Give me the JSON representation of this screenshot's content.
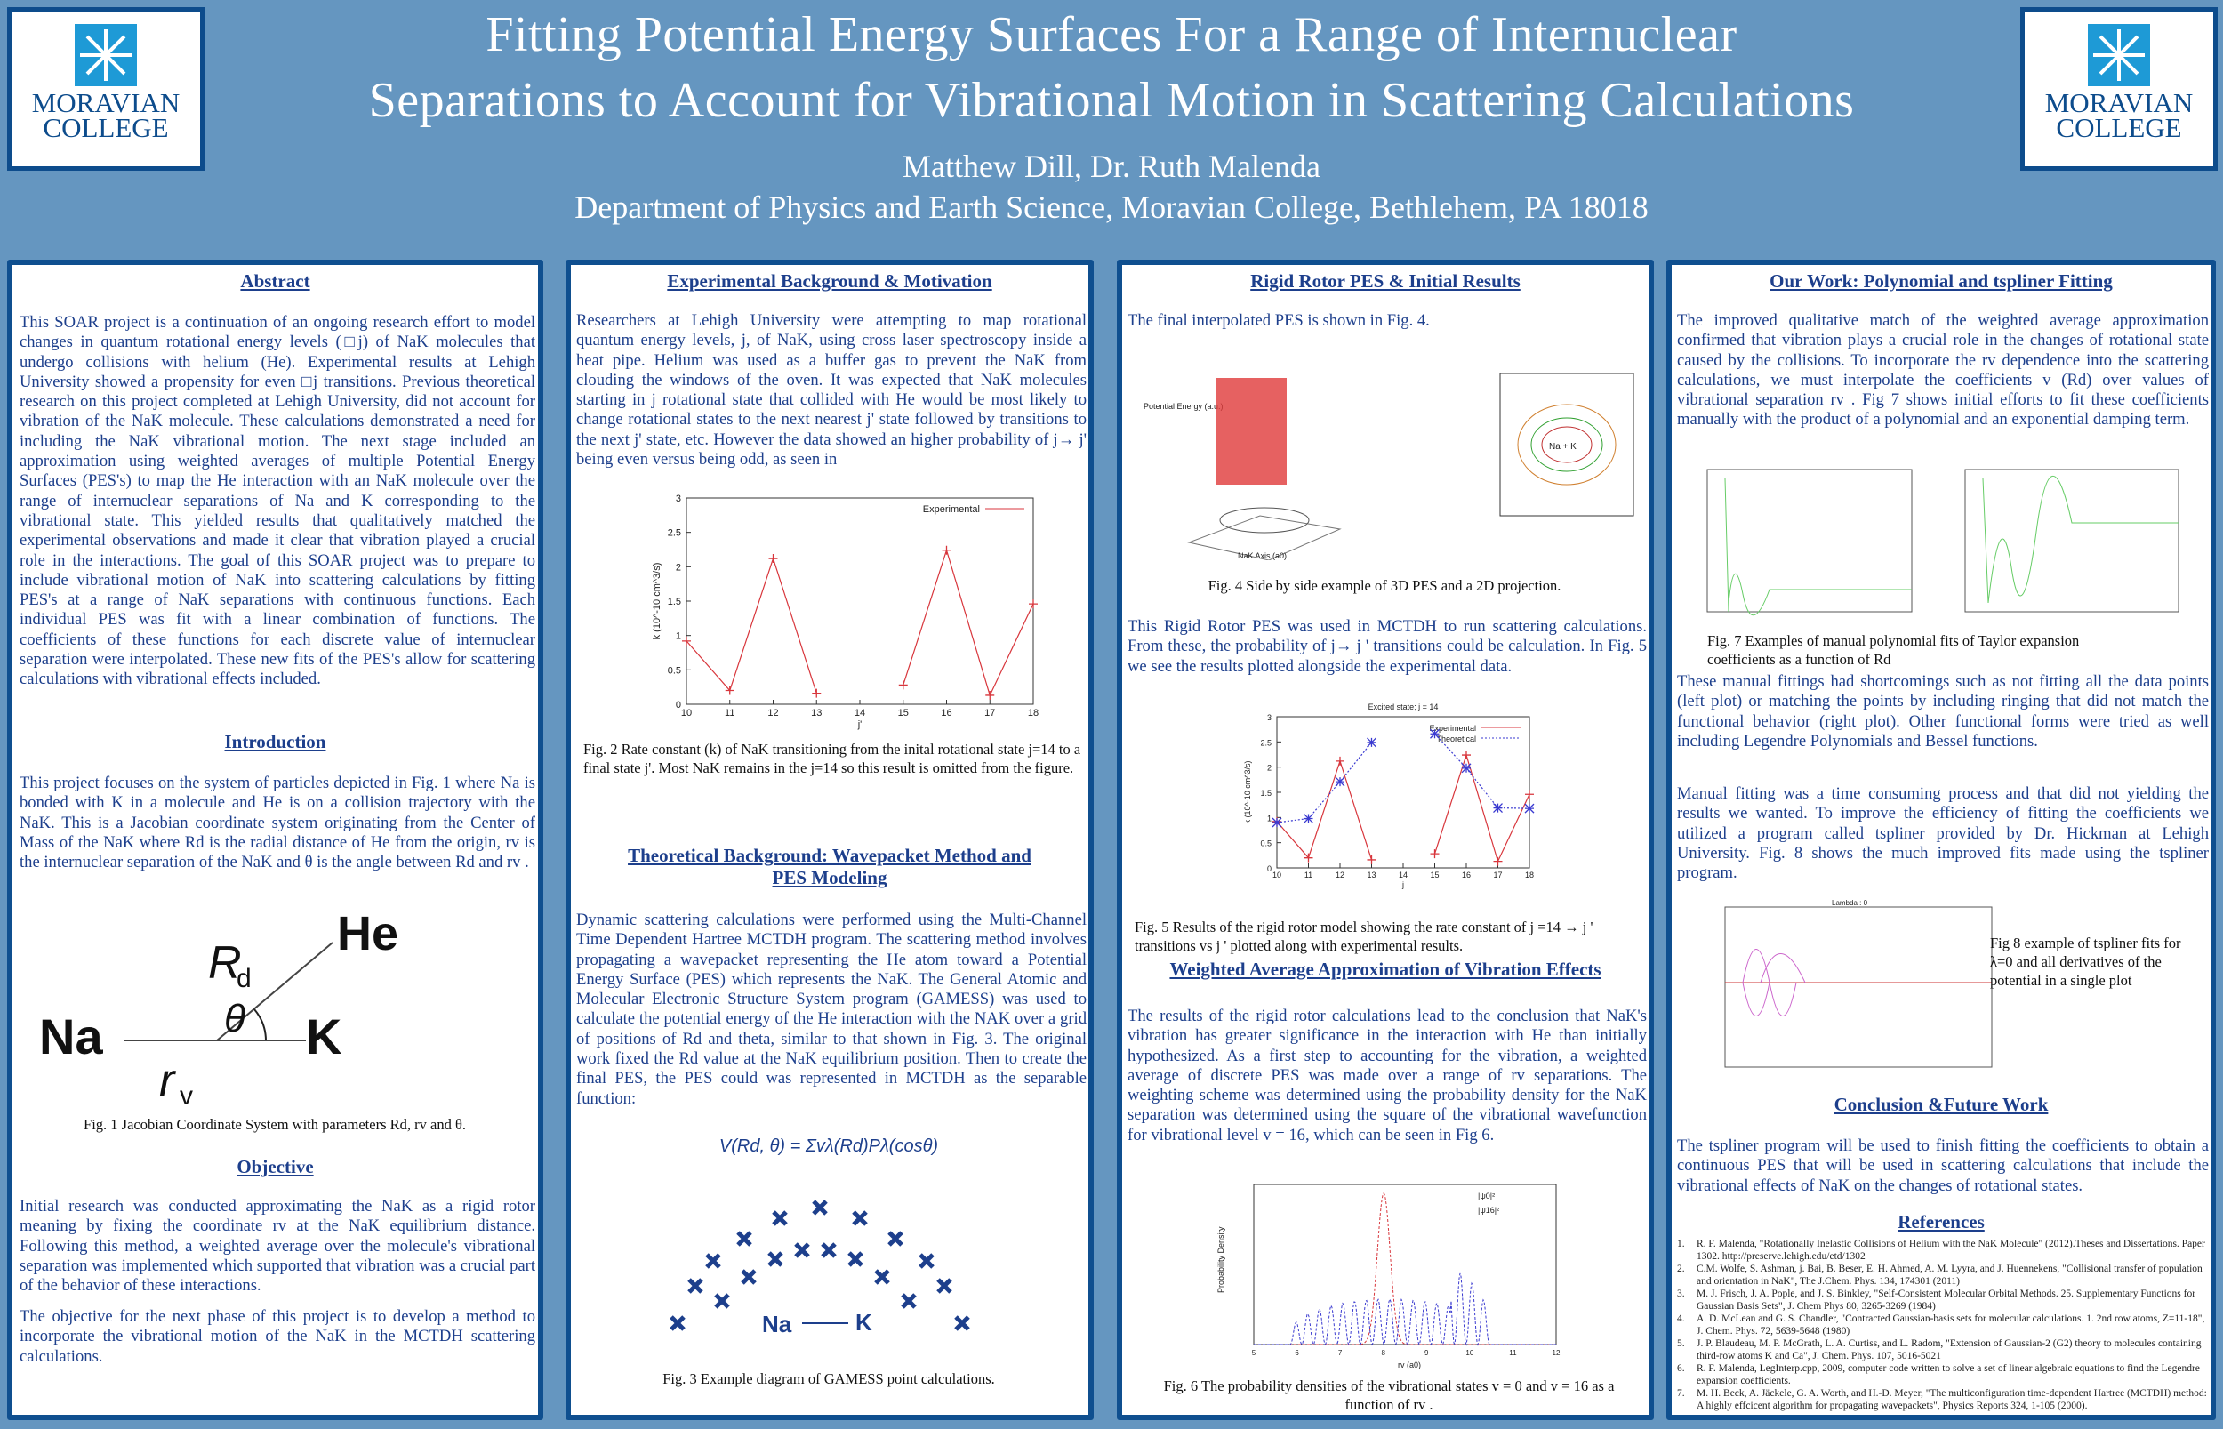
{
  "header": {
    "title_line1": "Fitting Potential Energy Surfaces For a Range of Internuclear",
    "title_line2": "Separations to Account for Vibrational Motion in Scattering Calculations",
    "authors": "Matthew Dill, Dr. Ruth Malenda",
    "department": "Department of Physics and Earth Science, Moravian College, Bethlehem, PA 18018",
    "logo_line1": "MORAVIAN",
    "logo_line2": "COLLEGE"
  },
  "colors": {
    "background": "#6596c0",
    "panel_border": "#0f4f8f",
    "text": "#1d3f8c",
    "experimental": "#d8363c",
    "theoretical": "#3a3ad0"
  },
  "col1": {
    "abstract_heading": "Abstract",
    "abstract": "This SOAR project is a continuation of an ongoing research effort to model changes in quantum rotational energy levels (□j) of NaK molecules that undergo collisions with helium (He). Experimental results at Lehigh University showed a propensity for even □j transitions.  Previous theoretical research on this project completed at Lehigh University, did not account for vibration of the NaK molecule. These calculations demonstrated a need for including the NaK vibrational motion.  The next stage included an approximation using weighted averages of multiple Potential Energy Surfaces (PES's) to map the He interaction with an NaK molecule over the range of internuclear separations of Na and K corresponding to the vibrational state. This yielded results that qualitatively matched the experimental observations and made it clear that vibration played a crucial role in the interactions. The goal of this SOAR project was to prepare to include vibrational motion of NaK into scattering calculations by fitting PES's at a range of NaK separations with continuous functions. Each individual PES was fit with a linear combination of functions. The coefficients of these functions for each discrete value of internuclear separation were interpolated. These new fits of the PES's allow for scattering calculations with vibrational effects included.",
    "intro_heading": "Introduction",
    "intro": "This project focuses on the system of particles depicted in Fig. 1 where Na is bonded with K in a molecule and He is on a collision trajectory with the NaK. This is a Jacobian coordinate system originating from the Center of Mass of the NaK where Rd is the radial distance of He from the origin, rv is the internuclear separation of the NaK and θ is the angle between Rd and rv .",
    "fig1": {
      "he": "He",
      "na": "Na",
      "k": "K",
      "rd": "R",
      "rd_sub": "d",
      "rv": "r",
      "rv_sub": "v",
      "theta": "θ"
    },
    "fig1_caption": "Fig. 1 Jacobian Coordinate System with parameters Rd, rv and θ.",
    "objective_heading": "Objective",
    "objective1": "Initial research was conducted approximating the NaK as a rigid rotor meaning by fixing the  coordinate rv at the NaK equilibrium distance. Following this method, a weighted average over the molecule's vibrational separation was implemented which supported that vibration was a crucial part of the behavior of these interactions.",
    "objective2": "The objective for the next phase of this project is to develop a method to incorporate the vibrational motion of the NaK in the  MCTDH scattering calculations."
  },
  "col2": {
    "heading": "Experimental Background & Motivation",
    "text": "Researchers at Lehigh University were attempting to map rotational quantum energy levels, j, of NaK, using cross laser spectroscopy inside a heat pipe. Helium was used as a buffer gas to prevent the NaK from clouding the windows of the oven. It was expected that NaK molecules starting in j rotational state that collided with He would be most likely to change rotational states to the next nearest j' state followed by transitions to the next j' state, etc. However the data showed an higher probability of j→ j' being even versus being odd, as seen in",
    "fig2_caption": "Fig. 2  Rate constant (k) of NaK transitioning from the inital rotational state j=14 to a final state j'. Most NaK remains in the j=14 so this result is omitted from the figure.",
    "theory_heading_1": "Theoretical Background: Wavepacket Method and",
    "theory_heading_2": "PES Modeling",
    "theory": "Dynamic scattering calculations were performed using the Multi-Channel Time Dependent Hartree MCTDH program. The scattering method involves propagating a wavepacket representing the He atom toward a Potential Energy Surface (PES) which represents the NaK. The General Atomic and Molecular Electronic Structure System program (GAMESS) was used to calculate the potential energy of the He interaction with the NAK over a grid of positions of Rd and theta, similar to that shown in Fig. 3. The original work fixed the Rd value at the NaK equilibrium position.   Then to create the final PES, the PES could was represented in MCTDH as the separable function:",
    "formula": "V(Rd, θ) = Σvλ(Rd)Pλ(cosθ)",
    "fig3": {
      "na": "Na",
      "k": "K"
    },
    "fig3_caption": "Fig. 3 Example diagram of GAMESS point calculations."
  },
  "col3": {
    "heading": "Rigid Rotor PES & Initial Results",
    "intro": "The final interpolated PES is shown in Fig. 4.",
    "fig4_ylabel": "Potential Energy (a.u.)",
    "fig4_xlabel": "NaK Axis (a0)",
    "fig4_contour_label": "Na  +  K",
    "fig4_caption": "Fig. 4 Side by side example of 3D PES and a 2D projection.",
    "text1": "This Rigid Rotor PES was used in MCTDH to run scattering calculations. From these, the probability of j→ j ' transitions could be calculation.  In Fig. 5 we see the results plotted alongside the experimental data.",
    "fig5_caption": "Fig. 5 Results of the rigid rotor model showing the rate constant of  j =14 → j ' transitions vs j ' plotted along with experimental results.",
    "weighted_heading": "Weighted Average Approximation of Vibration Effects",
    "text2": "The results of the rigid rotor calculations lead to the conclusion that NaK's vibration has greater significance in the interaction with He than initially hypothesized. As a first step to accounting for the vibration, a weighted average of discrete PES was made over a range of rv separations. The weighting scheme was determined using the probability density for the NaK separation was determined using the square of the vibrational wavefunction for vibrational level  v = 16, which can be seen in Fig 6.",
    "fig6": {
      "ylabel": "Probability Density",
      "xlabel": "rv (a0)",
      "legend": [
        "|ψ0|²",
        "|ψ16|²"
      ],
      "xticks": [
        "5",
        "6",
        "7",
        "8",
        "9",
        "10",
        "11",
        "12"
      ]
    },
    "fig6_caption": "Fig. 6 The probability densities of the vibrational states v = 0 and v = 16 as a function of  rv ."
  },
  "col4": {
    "heading": "Our Work: Polynomial and tspliner Fitting",
    "text1": "The improved qualitative match of the weighted average approximation confirmed that vibration plays a crucial role in the changes of rotational state caused by the collisions. To incorporate the rv dependence into the scattering calculations, we must interpolate the coefficients v (Rd) over values of vibrational separation rv .  Fig 7 shows initial efforts to fit these coefficients manually with the product of a polynomial and an exponential damping term.",
    "fig7_caption": "Fig. 7 Examples of manual polynomial fits of Taylor expansion coefficients as a function of Rd",
    "text2": "These manual fittings had shortcomings such as not fitting all the data points (left plot) or matching the points by including ringing that did not match the functional behavior (right plot). Other functional forms were tried as well including Legendre Polynomials and Bessel functions.",
    "text3": "Manual fitting was a time consuming process and that did not yielding the results we wanted. To improve the efficiency of fitting the coefficients we utilized a program called tspliner provided by Dr. Hickman at Lehigh University. Fig. 8 shows the much improved fits made using the  tspliner program.",
    "fig8_title": "Lambda : 0",
    "fig8_caption": "Fig 8 example of tspliner fits for λ=0 and all derivatives of the potential in a single plot",
    "conclusion_heading": "Conclusion &Future Work",
    "conclusion": "The tspliner program will be used to finish fitting the coefficients to obtain a continuous  PES that will be used in scattering calculations that include the  vibrational effects of NaK on the changes of rotational states.",
    "references_heading": "References",
    "references": [
      "R. F. Malenda,  \"Rotationally Inelastic Collisions of Helium with the NaK Molecule\" (2012).Theses and Dissertations. Paper 1302. http://preserve.lehigh.edu/etd/1302",
      "C.M. Wolfe, S. Ashman, j. Bai, B. Beser, E. H. Ahmed, A. M. Lyyra, and J. Huennekens, \"Collisional transfer of population and orientation in NaK\", The J.Chem. Phys. 134, 174301 (2011)",
      "M. J. Frisch, J. A. Pople, and J. S. Binkley, \"Self-Consistent Molecular Orbital Methods. 25. Supplementary Functions for Gaussian Basis Sets\", J. Chem Phys 80, 3265-3269 (1984)",
      "A. D. McLean and G. S. Chandler, \"Contracted Gaussian-basis sets for molecular calculations. 1. 2nd row atoms, Z=11-18\", J. Chem. Phys. 72, 5639-5648 (1980)",
      "J. P. Blaudeau, M. P. McGrath, L. A. Curtiss, and L. Radom, \"Extension of Gaussian-2 (G2) theory to molecules containing third-row atoms K and Ca\", J. Chem. Phys. 107, 5016-5021",
      "R. F. Malenda, LegInterp.cpp, 2009, computer code written to solve a set of linear algebraic equations to find the Legendre expansion coefficients.",
      "M. H. Beck, A. Jäckele, G. A. Worth, and H.-D. Meyer, \"The multiconfiguration time-dependent Hartree (MCTDH) method: A highly effcicent algorithm for propagating wavepackets\", Physics Reports 324, 1-105 (2000)."
    ]
  },
  "chart_data": [
    {
      "id": "fig2",
      "type": "line",
      "title": "",
      "xlabel": "j'",
      "ylabel": "k (10^-10 cm^3/s)",
      "xlim": [
        10,
        18
      ],
      "ylim": [
        0,
        3
      ],
      "xticks": [
        10,
        11,
        12,
        13,
        14,
        15,
        16,
        17,
        18
      ],
      "yticks": [
        0,
        0.5,
        1,
        1.5,
        2,
        2.5,
        3
      ],
      "grid": false,
      "legend": "top-right",
      "series": [
        {
          "name": "Experimental",
          "color": "#d8363c",
          "segments": [
            [
              [
                10,
                0.92
              ],
              [
                11,
                0.2
              ],
              [
                12,
                2.12
              ],
              [
                13,
                0.16
              ]
            ],
            [
              [
                15,
                0.28
              ],
              [
                16,
                2.24
              ],
              [
                17,
                0.13
              ],
              [
                18,
                1.46
              ]
            ]
          ]
        }
      ]
    },
    {
      "id": "fig5",
      "type": "line",
      "title": "Excited state; j = 14",
      "xlabel": "j",
      "ylabel": "k (10^-10 cm^3/s)",
      "xlim": [
        10,
        18
      ],
      "ylim": [
        0,
        3
      ],
      "xticks": [
        10,
        11,
        12,
        13,
        14,
        15,
        16,
        17,
        18
      ],
      "yticks": [
        0,
        0.5,
        1,
        1.5,
        2,
        2.5,
        3
      ],
      "grid": false,
      "legend": "top-right",
      "series": [
        {
          "name": "Experimental",
          "color": "#d8363c",
          "segments": [
            [
              [
                10,
                0.92
              ],
              [
                11,
                0.2
              ],
              [
                12,
                2.12
              ],
              [
                13,
                0.16
              ]
            ],
            [
              [
                15,
                0.28
              ],
              [
                16,
                2.24
              ],
              [
                17,
                0.13
              ],
              [
                18,
                1.46
              ]
            ]
          ]
        },
        {
          "name": "Theoretical",
          "color": "#3a3ad0",
          "segments": [
            [
              [
                10,
                0.9
              ],
              [
                11,
                0.98
              ],
              [
                12,
                1.71
              ],
              [
                13,
                2.49
              ]
            ],
            [
              [
                15,
                2.66
              ],
              [
                16,
                1.98
              ],
              [
                17,
                1.19
              ],
              [
                18,
                1.18
              ]
            ]
          ]
        }
      ]
    }
  ]
}
